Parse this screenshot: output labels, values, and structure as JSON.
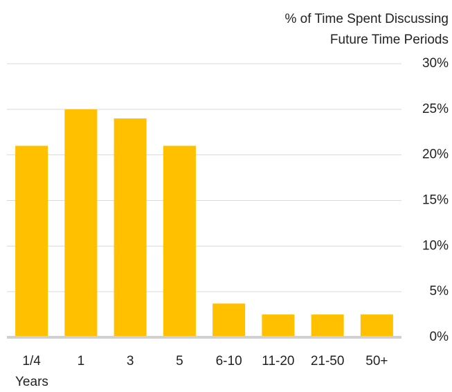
{
  "chart_data": {
    "type": "bar",
    "title": [
      "% of Time Spent Discussing",
      "Future Time Periods"
    ],
    "x_label": "Years",
    "categories": [
      "1/4",
      "1",
      "3",
      "5",
      "6-10",
      "11-20",
      "21-50",
      "50+"
    ],
    "values": [
      21,
      25,
      24,
      21,
      3.7,
      2.5,
      2.5,
      2.5
    ],
    "color": "#ffc000",
    "ylim": [
      0,
      30
    ],
    "yticks": [
      {
        "value": 0,
        "label": "0%"
      },
      {
        "value": 5,
        "label": "5%"
      },
      {
        "value": 10,
        "label": "10%"
      },
      {
        "value": 15,
        "label": "15%"
      },
      {
        "value": 20,
        "label": "20%"
      },
      {
        "value": 25,
        "label": "25%"
      },
      {
        "value": 30,
        "label": "30%"
      }
    ],
    "grid": true
  }
}
